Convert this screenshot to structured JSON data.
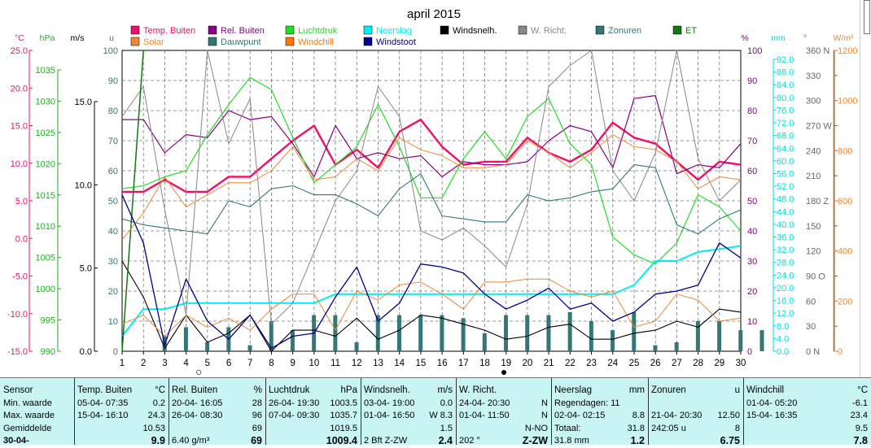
{
  "title": "april 2015",
  "legend": [
    {
      "label": "Temp. Buiten",
      "color": "#ee1166"
    },
    {
      "label": "Rel. Buiten",
      "color": "#880088"
    },
    {
      "label": "Luchtdruk",
      "color": "#22dd22"
    },
    {
      "label": "Neerslag",
      "color": "#00eeee"
    },
    {
      "label": "Windsnelh.",
      "color": "#000000"
    },
    {
      "label": "W. Richt.",
      "color": "#888888"
    },
    {
      "label": "Zonuren",
      "color": "#337777"
    },
    {
      "label": "ET",
      "color": "#117711"
    },
    {
      "label": "Solar",
      "color": "#ee8833"
    },
    {
      "label": "Dauwpunt",
      "color": "#337777"
    },
    {
      "label": "Windchill",
      "color": "#ff7700"
    },
    {
      "label": "Windstoot",
      "color": "#000088"
    }
  ],
  "axes": {
    "temp": {
      "unit": "°C",
      "ticks": [
        "25.0",
        "20.0",
        "15.0",
        "10.0",
        "5.0",
        "0.0",
        "-5.0",
        "-10.0",
        "-15.0"
      ],
      "color": "#ee1166"
    },
    "hpa": {
      "unit": "hPa",
      "ticks": [
        "1035",
        "1030",
        "1025",
        "1020",
        "1015",
        "1010",
        "1005",
        "1000",
        "995",
        "990"
      ],
      "color": "#22aa22"
    },
    "ms": {
      "unit": "m/s",
      "ticks": [
        "15.0",
        "10.0",
        "5.0",
        "0.0"
      ],
      "color": "#000000"
    },
    "u": {
      "unit": "u",
      "ticks": [
        "100",
        "90",
        "80",
        "70",
        "60",
        "50",
        "40",
        "30",
        "20",
        "10",
        "0"
      ],
      "color": "#337777"
    },
    "pct": {
      "unit": "%",
      "ticks": [
        "100",
        "90",
        "80",
        "70",
        "60",
        "50",
        "40",
        "30",
        "20",
        "10",
        "0"
      ],
      "color": "#880088"
    },
    "mm": {
      "unit": "mm",
      "ticks": [
        "92.0",
        "88.0",
        "84.0",
        "80.0",
        "76.0",
        "72.0",
        "68.0",
        "64.0",
        "60.0",
        "56.0",
        "52.0",
        "48.0",
        "44.0",
        "40.0",
        "36.0",
        "32.0",
        "28.0",
        "24.0",
        "20.0",
        "16.0",
        "12.0",
        "8.0",
        "4.0",
        "0.0"
      ],
      "color": "#00dddd"
    },
    "deg": {
      "unit": "°",
      "ticks": [
        "360 N",
        "330",
        "300",
        "270 W",
        "240",
        "210",
        "180 Z",
        "150",
        "120",
        "90  O",
        "60",
        "30",
        "0    N"
      ],
      "color": "#666666"
    },
    "wm2": {
      "unit": "W/m²",
      "ticks": [
        "1200",
        "1000",
        "800",
        "600",
        "400",
        "200",
        "0"
      ],
      "color": "#ee8833"
    },
    "days": [
      "1",
      "2",
      "3",
      "4",
      "5",
      "6",
      "7",
      "8",
      "9",
      "10",
      "11",
      "12",
      "13",
      "14",
      "15",
      "16",
      "17",
      "18",
      "19",
      "20",
      "21",
      "22",
      "23",
      "24",
      "25",
      "26",
      "27",
      "28",
      "29",
      "30"
    ]
  },
  "chart_data": {
    "type": "line",
    "x": [
      1,
      2,
      3,
      4,
      5,
      6,
      7,
      8,
      9,
      10,
      11,
      12,
      13,
      14,
      15,
      16,
      17,
      18,
      19,
      20,
      21,
      22,
      23,
      24,
      25,
      26,
      27,
      28,
      29,
      30
    ],
    "series": [
      {
        "name": "Temp. Buiten",
        "axis": "u",
        "color": "#ee1166",
        "width": 2.4,
        "values": [
          53,
          53,
          57,
          53,
          53,
          58,
          58,
          64,
          70,
          75,
          62,
          67,
          61,
          73,
          77,
          68,
          62,
          63,
          63,
          71,
          66,
          63,
          67,
          76,
          71,
          69,
          63,
          57,
          63,
          62
        ]
      },
      {
        "name": "Rel. Buiten",
        "axis": "u",
        "color": "#880088",
        "width": 1.2,
        "values": [
          77,
          77,
          66,
          72,
          71,
          80,
          77,
          78,
          69,
          58,
          75,
          64,
          66,
          64,
          65,
          58,
          63,
          62,
          62,
          63,
          70,
          75,
          73,
          61,
          84,
          85,
          59,
          62,
          61,
          69
        ]
      },
      {
        "name": "Luchtdruk",
        "axis": "u",
        "color": "#22dd22",
        "width": 1.2,
        "values": [
          54,
          55,
          58,
          60,
          72,
          82,
          91,
          87,
          71,
          56,
          62,
          68,
          82,
          68,
          51,
          51,
          64,
          73,
          64,
          78,
          84,
          69,
          62,
          38,
          32,
          29,
          36,
          52,
          48,
          40
        ]
      },
      {
        "name": "Neerslag",
        "axis": "u",
        "color": "#00eeee",
        "width": 2,
        "values": [
          5,
          14,
          14,
          16,
          16,
          16,
          16,
          16,
          16,
          16,
          19,
          19,
          19,
          19,
          19,
          19,
          19,
          19,
          19,
          19,
          19,
          19,
          19,
          19,
          22,
          30,
          30,
          33,
          34,
          35
        ]
      },
      {
        "name": "Windsnelh.",
        "axis": "u",
        "color": "#000000",
        "width": 1.1,
        "values": [
          30,
          18,
          1,
          12,
          3,
          6,
          12,
          0,
          7,
          7,
          5,
          11,
          4,
          7,
          12,
          11,
          9,
          7,
          4,
          5,
          8,
          9,
          4,
          4,
          6,
          7,
          10,
          8,
          14,
          13
        ]
      },
      {
        "name": "W. Richt.",
        "axis": "u",
        "color": "#888888",
        "width": 1,
        "values": [
          78,
          88,
          47,
          12,
          100,
          69,
          84,
          9,
          16,
          33,
          50,
          60,
          88,
          78,
          40,
          37,
          41,
          35,
          28,
          49,
          88,
          95,
          100,
          60,
          50,
          66,
          100,
          64,
          50,
          57
        ]
      },
      {
        "name": "Zonuren",
        "axis": "u",
        "color": "#337777",
        "width": 1.1,
        "values": [
          44,
          42,
          41,
          40,
          39,
          50,
          48,
          54,
          55,
          52,
          52,
          49,
          45,
          54,
          59,
          45,
          44,
          43,
          43,
          52,
          50,
          51,
          53,
          54,
          62,
          61,
          42,
          39,
          44,
          47
        ]
      },
      {
        "name": "ET",
        "axis": "u",
        "color": "#117711",
        "width": 1.5,
        "values": [
          0,
          100,
          null,
          null,
          null,
          null,
          null,
          null,
          null,
          null,
          null,
          null,
          null,
          null,
          null,
          null,
          null,
          null,
          null,
          null,
          null,
          null,
          null,
          null,
          null,
          null,
          null,
          null,
          null,
          null
        ]
      },
      {
        "name": "Solar",
        "axis": "u",
        "color": "#ee8833",
        "width": 1,
        "values": [
          9,
          12,
          5,
          12,
          8,
          11,
          7,
          14,
          19,
          19,
          7,
          20,
          17,
          22,
          23,
          19,
          14,
          23,
          23,
          24,
          24,
          20,
          18,
          20,
          8,
          10,
          19,
          17,
          10,
          11
        ]
      },
      {
        "name": "Dauwpunt",
        "axis": "u",
        "color": "#ee8833",
        "width": 1,
        "values": [
          37,
          46,
          58,
          48,
          52,
          56,
          56,
          60,
          68,
          57,
          58,
          64,
          60,
          71,
          67,
          65,
          61,
          61,
          62,
          70,
          66,
          61,
          66,
          72,
          68,
          67,
          63,
          54,
          58,
          57
        ]
      },
      {
        "name": "Windchill",
        "axis": "u",
        "color": "#ff7700",
        "width": 1,
        "values": [
          null,
          null,
          null,
          null,
          null,
          null,
          null,
          null,
          null,
          null,
          null,
          null,
          null,
          null,
          null,
          null,
          null,
          null,
          null,
          null,
          null,
          null,
          null,
          null,
          null,
          null,
          null,
          null,
          null,
          null
        ]
      },
      {
        "name": "Windstoot",
        "axis": "u",
        "color": "#000088",
        "width": 1.3,
        "values": [
          52,
          36,
          2,
          24,
          10,
          4,
          12,
          1,
          5,
          6,
          18,
          28,
          10,
          16,
          29,
          28,
          26,
          19,
          14,
          17,
          21,
          14,
          16,
          10,
          13,
          19,
          20,
          22,
          36,
          31
        ]
      }
    ],
    "bars": {
      "name": "Zonuren",
      "color": "#337777",
      "values": [
        0,
        5,
        8,
        3,
        8,
        2,
        10,
        7,
        12,
        12,
        3,
        12,
        12,
        12,
        12,
        11,
        6,
        12,
        12,
        12,
        13,
        10,
        7,
        13,
        2,
        3,
        10,
        10,
        7,
        7
      ]
    },
    "markers": [
      {
        "day": 4.6,
        "symbol": "○"
      },
      {
        "day": 18.9,
        "symbol": "●"
      }
    ],
    "ylim": [
      0,
      100
    ],
    "xlim": [
      1,
      30
    ]
  },
  "stats": {
    "row_labels": [
      "Sensor",
      "Min. waarde",
      "Max. waarde",
      "Gemiddelde",
      "30-04-"
    ],
    "columns": [
      {
        "name": "Temp. Buiten",
        "unit": "°C",
        "rows": [
          [
            "05-04-  07:35",
            "0.2"
          ],
          [
            "15-04-  16:10",
            "24.3"
          ],
          [
            "",
            "10.53"
          ],
          [
            "",
            "9.9"
          ]
        ]
      },
      {
        "name": "Rel. Buiten",
        "unit": "%",
        "rows": [
          [
            "20-04-  16:05",
            "28"
          ],
          [
            "26-04-  08:30",
            "96"
          ],
          [
            "",
            "69"
          ],
          [
            "6.40 g/m³",
            "69"
          ]
        ]
      },
      {
        "name": "Luchtdruk",
        "unit": "hPa",
        "rows": [
          [
            "26-04-  19:30",
            "1003.5"
          ],
          [
            "07-04-  09:30",
            "1035.7"
          ],
          [
            "",
            "1019.5"
          ],
          [
            "",
            "1009.4"
          ]
        ]
      },
      {
        "name": "Windsnelh.",
        "unit": "m/s",
        "rows": [
          [
            "03-04-  19:00",
            "0.0"
          ],
          [
            "01-04-  16:50",
            "W 8.3"
          ],
          [
            "",
            "1.5"
          ],
          [
            "2 Bft Z-ZW",
            "2.4"
          ]
        ]
      },
      {
        "name": "W. Richt.",
        "unit": "",
        "rows": [
          [
            "24-04-  20:30",
            "N"
          ],
          [
            "01-04-  11:50",
            "N"
          ],
          [
            "",
            "N-NO"
          ],
          [
            "202 °",
            "Z-ZW"
          ]
        ]
      },
      {
        "name": "Neerslag",
        "unit": "mm",
        "rows": [
          [
            "Regendagen: 11",
            ""
          ],
          [
            "02-04-  02:15",
            "8.8"
          ],
          [
            "Totaal:",
            "31.8"
          ],
          [
            "31.8 mm",
            "1.2"
          ]
        ]
      },
      {
        "name": "Zonuren",
        "unit": "u",
        "rows": [
          [
            "",
            ""
          ],
          [
            "21-04-  20:30",
            "12.50"
          ],
          [
            "242:05 u",
            "8"
          ],
          [
            "",
            "6.75"
          ]
        ]
      },
      {
        "name": "Windchill",
        "unit": "°C",
        "rows": [
          [
            "01-04-  05:20",
            "-6.1"
          ],
          [
            "15-04-  16:35",
            "23.4"
          ],
          [
            "",
            "9.5"
          ],
          [
            "",
            "7.8"
          ]
        ]
      }
    ]
  }
}
